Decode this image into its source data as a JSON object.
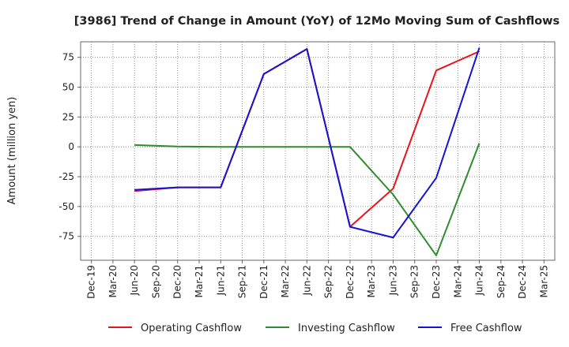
{
  "chart_data": {
    "type": "line",
    "title": "[3986]  Trend of Change in Amount (YoY) of 12Mo Moving Sum of Cashflows",
    "xlabel": "",
    "ylabel": "Amount (million yen)",
    "categories": [
      "Dec-19",
      "Mar-20",
      "Jun-20",
      "Sep-20",
      "Dec-20",
      "Mar-21",
      "Jun-21",
      "Sep-21",
      "Dec-21",
      "Mar-22",
      "Jun-22",
      "Sep-22",
      "Dec-22",
      "Mar-23",
      "Jun-23",
      "Sep-23",
      "Dec-23",
      "Mar-24",
      "Jun-24",
      "Sep-24",
      "Dec-24",
      "Mar-25"
    ],
    "ylim": [
      -95,
      88
    ],
    "yticks": [
      75,
      50,
      25,
      0,
      -25,
      -50,
      -75
    ],
    "grid": true,
    "legend_position": "bottom",
    "series": [
      {
        "name": "Operating Cashflow",
        "color": "#e8141b",
        "values": [
          null,
          null,
          -37,
          null,
          -34,
          null,
          -34,
          null,
          61,
          null,
          82,
          null,
          -67,
          null,
          -35,
          null,
          64,
          null,
          80,
          null,
          null,
          null
        ]
      },
      {
        "name": "Investing Cashflow",
        "color": "#2e8b2e",
        "values": [
          null,
          null,
          1.5,
          null,
          0.3,
          null,
          0,
          null,
          0,
          null,
          0,
          null,
          0,
          null,
          -40,
          null,
          -91,
          null,
          3,
          null,
          null,
          null
        ]
      },
      {
        "name": "Free Cashflow",
        "color": "#1414d2",
        "values": [
          null,
          null,
          -36,
          null,
          -34,
          null,
          -34,
          null,
          61,
          null,
          82,
          null,
          -67,
          null,
          -76,
          null,
          -26,
          null,
          83,
          null,
          null,
          null
        ]
      }
    ]
  }
}
